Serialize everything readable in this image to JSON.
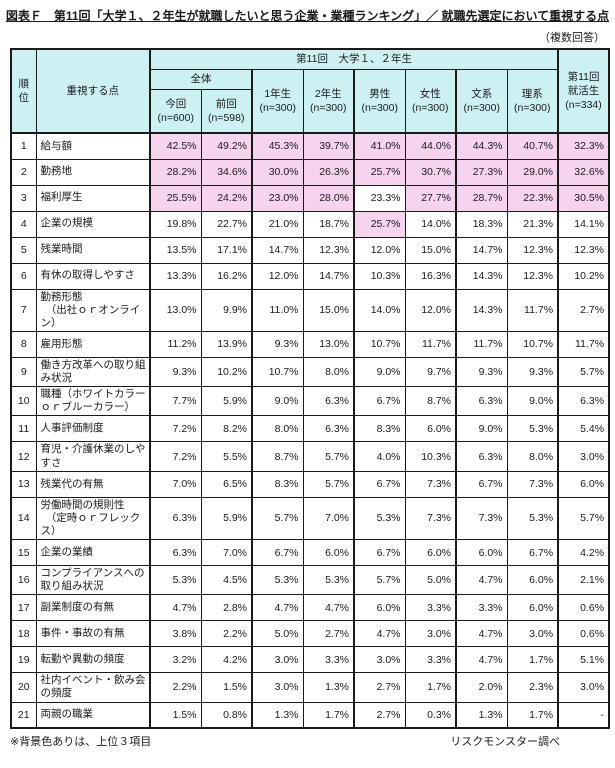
{
  "title": "図表Ｆ　第11回「大学１、２年生が就職したいと思う企業・業種ランキング」／ 就職先選定において重視する点",
  "note_multiple_answers": "（複数回答）",
  "colors": {
    "header_bg": "#cdf0f2",
    "highlight_bg": "#f6d3ef",
    "border": "#1a1a1a"
  },
  "chart_data": {
    "type": "table",
    "title": "第11回「大学1、2年生が就職したいと思う企業・業種ランキング」／就職先選定において重視する点",
    "rank_header": "順位",
    "item_header": "重視する点",
    "group_header": "第11回　大学１、２年生",
    "overall_header": "全体",
    "columns": [
      {
        "label": "今回",
        "n": "(n=600)"
      },
      {
        "label": "前回",
        "n": "(n=598)"
      },
      {
        "label": "1年生",
        "n": "(n=300)"
      },
      {
        "label": "2年生",
        "n": "(n=300)"
      },
      {
        "label": "男性",
        "n": "(n=300)"
      },
      {
        "label": "女性",
        "n": "(n=300)"
      },
      {
        "label": "文系",
        "n": "(n=300)"
      },
      {
        "label": "理系",
        "n": "(n=300)"
      }
    ],
    "last_column": {
      "line1": "第11回",
      "line2": "就活生",
      "n": "(n=334)"
    },
    "rows": [
      {
        "rank": "1",
        "item": "給与額",
        "values": [
          "42.5%",
          "49.2%",
          "45.3%",
          "39.7%",
          "41.0%",
          "44.0%",
          "44.3%",
          "40.7%",
          "32.3%"
        ],
        "highlight": [
          1,
          1,
          1,
          1,
          1,
          1,
          1,
          1,
          1
        ]
      },
      {
        "rank": "2",
        "item": "勤務地",
        "values": [
          "28.2%",
          "34.6%",
          "30.0%",
          "26.3%",
          "25.7%",
          "30.7%",
          "27.3%",
          "29.0%",
          "32.6%"
        ],
        "highlight": [
          1,
          1,
          1,
          1,
          1,
          1,
          1,
          1,
          1
        ]
      },
      {
        "rank": "3",
        "item": "福利厚生",
        "values": [
          "25.5%",
          "24.2%",
          "23.0%",
          "28.0%",
          "23.3%",
          "27.7%",
          "28.7%",
          "22.3%",
          "30.5%"
        ],
        "highlight": [
          1,
          1,
          1,
          1,
          0,
          1,
          1,
          1,
          1
        ]
      },
      {
        "rank": "4",
        "item": "企業の規模",
        "values": [
          "19.8%",
          "22.7%",
          "21.0%",
          "18.7%",
          "25.7%",
          "14.0%",
          "18.3%",
          "21.3%",
          "14.1%"
        ],
        "highlight": [
          0,
          0,
          0,
          0,
          1,
          0,
          0,
          0,
          0
        ]
      },
      {
        "rank": "5",
        "item": "残業時間",
        "values": [
          "13.5%",
          "17.1%",
          "14.7%",
          "12.3%",
          "12.0%",
          "15.0%",
          "14.7%",
          "12.3%",
          "12.3%"
        ],
        "highlight": [
          0,
          0,
          0,
          0,
          0,
          0,
          0,
          0,
          0
        ]
      },
      {
        "rank": "6",
        "item": "有休の取得しやすさ",
        "values": [
          "13.3%",
          "16.2%",
          "12.0%",
          "14.7%",
          "10.3%",
          "16.3%",
          "14.3%",
          "12.3%",
          "10.2%"
        ],
        "highlight": [
          0,
          0,
          0,
          0,
          0,
          0,
          0,
          0,
          0
        ]
      },
      {
        "rank": "7",
        "item": "勤務形態\n　（出社ｏｒオンライン）",
        "values": [
          "13.0%",
          "9.9%",
          "11.0%",
          "15.0%",
          "14.0%",
          "12.0%",
          "14.3%",
          "11.7%",
          "2.7%"
        ],
        "highlight": [
          0,
          0,
          0,
          0,
          0,
          0,
          0,
          0,
          0
        ]
      },
      {
        "rank": "8",
        "item": "雇用形態",
        "values": [
          "11.2%",
          "13.9%",
          "9.3%",
          "13.0%",
          "10.7%",
          "11.7%",
          "11.7%",
          "10.7%",
          "11.7%"
        ],
        "highlight": [
          0,
          0,
          0,
          0,
          0,
          0,
          0,
          0,
          0
        ]
      },
      {
        "rank": "9",
        "item": "働き方改革への取り組み状況",
        "values": [
          "9.3%",
          "10.2%",
          "10.7%",
          "8.0%",
          "9.0%",
          "9.7%",
          "9.3%",
          "9.3%",
          "5.7%"
        ],
        "highlight": [
          0,
          0,
          0,
          0,
          0,
          0,
          0,
          0,
          0
        ]
      },
      {
        "rank": "10",
        "item": "職種（ホワイトカラーｏｒブルーカラー）",
        "values": [
          "7.7%",
          "5.9%",
          "9.0%",
          "6.3%",
          "6.7%",
          "8.7%",
          "6.3%",
          "9.0%",
          "6.3%"
        ],
        "highlight": [
          0,
          0,
          0,
          0,
          0,
          0,
          0,
          0,
          0
        ]
      },
      {
        "rank": "11",
        "item": "人事評価制度",
        "values": [
          "7.2%",
          "8.2%",
          "8.0%",
          "6.3%",
          "8.3%",
          "6.0%",
          "9.0%",
          "5.3%",
          "5.4%"
        ],
        "highlight": [
          0,
          0,
          0,
          0,
          0,
          0,
          0,
          0,
          0
        ]
      },
      {
        "rank": "12",
        "item": "育児・介護休業のしやすさ",
        "values": [
          "7.2%",
          "5.5%",
          "8.7%",
          "5.7%",
          "4.0%",
          "10.3%",
          "6.3%",
          "8.0%",
          "3.0%"
        ],
        "highlight": [
          0,
          0,
          0,
          0,
          0,
          0,
          0,
          0,
          0
        ]
      },
      {
        "rank": "13",
        "item": "残業代の有無",
        "values": [
          "7.0%",
          "6.5%",
          "8.3%",
          "5.7%",
          "6.7%",
          "7.3%",
          "6.7%",
          "7.3%",
          "6.0%"
        ],
        "highlight": [
          0,
          0,
          0,
          0,
          0,
          0,
          0,
          0,
          0
        ]
      },
      {
        "rank": "14",
        "item": "労働時間の規則性\n　（定時ｏｒフレックス）",
        "values": [
          "6.3%",
          "5.9%",
          "5.7%",
          "7.0%",
          "5.3%",
          "7.3%",
          "7.3%",
          "5.3%",
          "5.7%"
        ],
        "highlight": [
          0,
          0,
          0,
          0,
          0,
          0,
          0,
          0,
          0
        ]
      },
      {
        "rank": "15",
        "item": "企業の業績",
        "values": [
          "6.3%",
          "7.0%",
          "6.7%",
          "6.0%",
          "6.7%",
          "6.0%",
          "6.0%",
          "6.7%",
          "4.2%"
        ],
        "highlight": [
          0,
          0,
          0,
          0,
          0,
          0,
          0,
          0,
          0
        ]
      },
      {
        "rank": "16",
        "item": "コンプライアンスへの取り組み状況",
        "values": [
          "5.3%",
          "4.5%",
          "5.3%",
          "5.3%",
          "5.7%",
          "5.0%",
          "4.7%",
          "6.0%",
          "2.1%"
        ],
        "highlight": [
          0,
          0,
          0,
          0,
          0,
          0,
          0,
          0,
          0
        ]
      },
      {
        "rank": "17",
        "item": "副業制度の有無",
        "values": [
          "4.7%",
          "2.8%",
          "4.7%",
          "4.7%",
          "6.0%",
          "3.3%",
          "3.3%",
          "6.0%",
          "0.6%"
        ],
        "highlight": [
          0,
          0,
          0,
          0,
          0,
          0,
          0,
          0,
          0
        ]
      },
      {
        "rank": "18",
        "item": "事件・事故の有無",
        "values": [
          "3.8%",
          "2.2%",
          "5.0%",
          "2.7%",
          "4.7%",
          "3.0%",
          "4.7%",
          "3.0%",
          "0.6%"
        ],
        "highlight": [
          0,
          0,
          0,
          0,
          0,
          0,
          0,
          0,
          0
        ]
      },
      {
        "rank": "19",
        "item": "転勤や異動の頻度",
        "values": [
          "3.2%",
          "4.2%",
          "3.0%",
          "3.3%",
          "3.0%",
          "3.3%",
          "4.7%",
          "1.7%",
          "5.1%"
        ],
        "highlight": [
          0,
          0,
          0,
          0,
          0,
          0,
          0,
          0,
          0
        ]
      },
      {
        "rank": "20",
        "item": "社内イベント・飲み会の頻度",
        "values": [
          "2.2%",
          "1.5%",
          "3.0%",
          "1.3%",
          "2.7%",
          "1.7%",
          "2.0%",
          "2.3%",
          "3.0%"
        ],
        "highlight": [
          0,
          0,
          0,
          0,
          0,
          0,
          0,
          0,
          0
        ]
      },
      {
        "rank": "21",
        "item": "両親の職業",
        "values": [
          "1.5%",
          "0.8%",
          "1.3%",
          "1.7%",
          "2.7%",
          "0.3%",
          "1.3%",
          "1.7%",
          "-"
        ],
        "highlight": [
          0,
          0,
          0,
          0,
          0,
          0,
          0,
          0,
          0
        ]
      }
    ],
    "footnote_left": "※背景色ありは、上位３項目",
    "source": "リスクモンスター調べ"
  }
}
